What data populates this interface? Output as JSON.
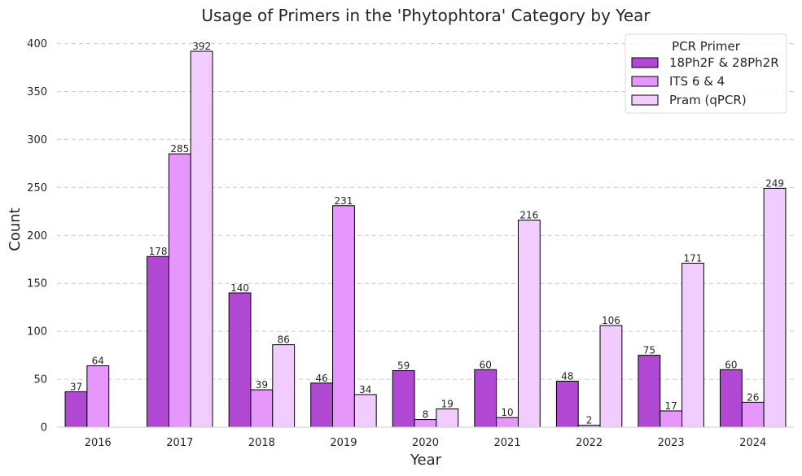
{
  "chart_data": {
    "type": "bar",
    "title": "Usage of Primers in the 'Phytophtora' Category by Year",
    "xlabel": "Year",
    "ylabel": "Count",
    "ylim": [
      0,
      420
    ],
    "yticks": [
      0,
      50,
      100,
      150,
      200,
      250,
      300,
      350,
      400
    ],
    "grid": "y-dashed",
    "legend_title": "PCR Primer",
    "legend_position": "top-right",
    "categories": [
      "2016",
      "2017",
      "2018",
      "2019",
      "2020",
      "2021",
      "2022",
      "2023",
      "2024"
    ],
    "series": [
      {
        "name": "18Ph2F & 28Ph2R",
        "color": "#b048d4",
        "values": [
          37,
          178,
          140,
          46,
          59,
          60,
          48,
          75,
          60
        ]
      },
      {
        "name": "ITS 6 & 4",
        "color": "#e597fb",
        "values": [
          64,
          285,
          39,
          231,
          8,
          10,
          2,
          17,
          26
        ]
      },
      {
        "name": "Pram (qPCR)",
        "color": "#f0cdfe",
        "values": [
          null,
          392,
          86,
          34,
          19,
          216,
          106,
          171,
          249
        ]
      }
    ]
  }
}
